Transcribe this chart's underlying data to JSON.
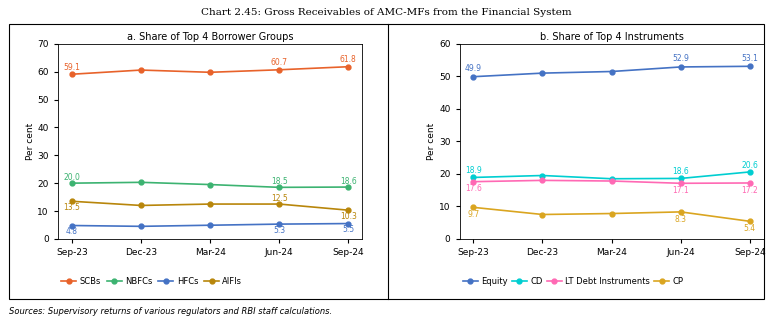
{
  "title": "Chart 2.45: Gross Receivables of AMC-MFs from the Financial System",
  "source": "Sources: Supervisory returns of various regulators and RBI staff calculations.",
  "x_labels": [
    "Sep-23",
    "Dec-23",
    "Mar-24",
    "Jun-24",
    "Sep-24"
  ],
  "panel_a": {
    "title": "a. Share of Top 4 Borrower Groups",
    "ylabel": "Per cent",
    "ylim": [
      0,
      70
    ],
    "yticks": [
      0,
      10,
      20,
      30,
      40,
      50,
      60,
      70
    ],
    "series": {
      "SCBs": {
        "values": [
          59.1,
          60.6,
          59.8,
          60.7,
          61.8
        ],
        "color": "#E8622A",
        "labels": [
          "59.1",
          "",
          "",
          "60.7",
          "61.8"
        ],
        "label_dy": [
          2.5,
          0,
          0,
          2.5,
          2.5
        ]
      },
      "NBFCs": {
        "values": [
          20.0,
          20.3,
          19.5,
          18.5,
          18.6
        ],
        "color": "#3CB371",
        "labels": [
          "20.0",
          "",
          "",
          "18.5",
          "18.6"
        ],
        "label_dy": [
          2.0,
          0,
          0,
          2.0,
          2.0
        ]
      },
      "HFCs": {
        "values": [
          4.8,
          4.5,
          4.9,
          5.3,
          5.5
        ],
        "color": "#4472C4",
        "labels": [
          "4.8",
          "",
          "",
          "5.3",
          "5.5"
        ],
        "label_dy": [
          -2.2,
          0,
          0,
          -2.2,
          -2.2
        ]
      },
      "AIFIs": {
        "values": [
          13.5,
          12.0,
          12.5,
          12.5,
          10.3
        ],
        "color": "#B8860B",
        "labels": [
          "13.5",
          "",
          "",
          "12.5",
          "10.3"
        ],
        "label_dy": [
          -2.2,
          0,
          0,
          2.0,
          -2.2
        ]
      }
    }
  },
  "panel_b": {
    "title": "b. Share of Top 4 Instruments",
    "ylabel": "Per cent",
    "ylim": [
      0,
      60
    ],
    "yticks": [
      0,
      10,
      20,
      30,
      40,
      50,
      60
    ],
    "series": {
      "Equity": {
        "values": [
          49.9,
          51.0,
          51.5,
          52.9,
          53.1
        ],
        "color": "#4472C4",
        "labels": [
          "49.9",
          "",
          "",
          "52.9",
          "53.1"
        ],
        "label_dy": [
          2.5,
          0,
          0,
          2.5,
          2.5
        ]
      },
      "CD": {
        "values": [
          18.9,
          19.5,
          18.5,
          18.6,
          20.6
        ],
        "color": "#00CED1",
        "labels": [
          "18.9",
          "",
          "",
          "18.6",
          "20.6"
        ],
        "label_dy": [
          2.0,
          0,
          0,
          2.0,
          2.0
        ]
      },
      "LT Debt Instruments": {
        "values": [
          17.6,
          18.0,
          17.8,
          17.1,
          17.2
        ],
        "color": "#FF69B4",
        "labels": [
          "17.6",
          "",
          "",
          "17.1",
          "17.2"
        ],
        "label_dy": [
          -2.2,
          0,
          0,
          -2.2,
          -2.2
        ]
      },
      "CP": {
        "values": [
          9.7,
          7.5,
          7.8,
          8.3,
          5.4
        ],
        "color": "#DAA520",
        "labels": [
          "9.7",
          "",
          "",
          "8.3",
          "5.4"
        ],
        "label_dy": [
          -2.2,
          0,
          0,
          -2.2,
          -2.2
        ]
      }
    }
  }
}
